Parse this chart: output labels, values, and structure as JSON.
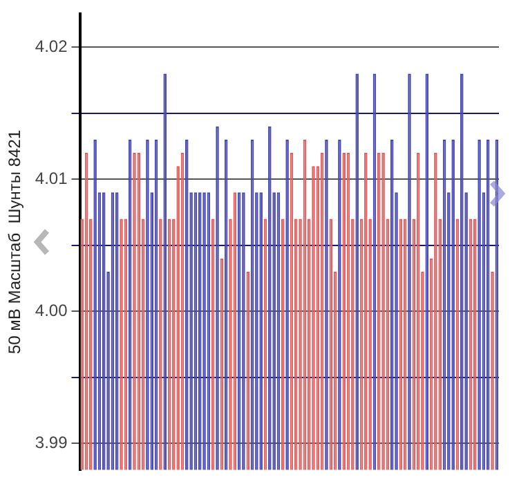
{
  "chart_data": {
    "type": "bar",
    "ylabel": "50 мВ Масштаб  Шунты 8421",
    "categories": [
      null,
      null,
      null,
      null,
      null,
      null,
      null,
      null,
      null,
      null,
      null,
      null,
      null,
      null,
      null,
      null,
      null,
      null,
      null,
      null,
      null,
      null,
      null,
      null,
      null,
      null,
      null,
      null,
      null,
      null,
      null,
      null,
      null,
      null,
      null,
      null,
      null,
      null,
      null,
      null,
      null,
      null,
      null,
      null,
      null,
      null,
      null,
      null,
      null,
      null,
      null,
      null,
      null,
      null,
      null,
      null,
      null,
      null,
      null,
      null,
      null,
      null,
      null,
      null,
      null,
      null,
      null,
      null,
      null,
      null,
      null,
      null,
      null,
      null,
      null,
      null,
      null,
      null,
      null,
      null,
      null,
      null,
      null,
      null,
      null,
      null,
      null,
      null,
      null,
      null,
      null,
      null,
      null,
      null,
      null,
      null
    ],
    "values": [
      4.007,
      4.012,
      4.007,
      4.013,
      4.009,
      4.009,
      4.003,
      4.009,
      4.009,
      4.007,
      4.007,
      4.013,
      4.012,
      4.012,
      4.007,
      4.013,
      4.009,
      4.013,
      4.007,
      4.018,
      4.007,
      4.007,
      4.011,
      4.012,
      4.013,
      4.009,
      4.009,
      4.009,
      4.009,
      4.009,
      4.007,
      4.014,
      4.004,
      4.013,
      4.007,
      4.009,
      4.009,
      4.009,
      4.003,
      4.013,
      4.009,
      4.009,
      4.007,
      4.014,
      4.009,
      4.009,
      4.007,
      4.013,
      4.012,
      4.007,
      4.007,
      4.013,
      4.007,
      4.011,
      4.011,
      4.012,
      4.013,
      4.007,
      4.003,
      4.013,
      4.012,
      4.012,
      4.007,
      4.018,
      4.007,
      4.012,
      4.007,
      4.018,
      4.012,
      4.012,
      4.007,
      4.013,
      4.009,
      4.007,
      4.007,
      4.018,
      4.007,
      4.012,
      4.003,
      4.018,
      4.004,
      4.012,
      4.007,
      4.013,
      4.009,
      4.013,
      4.007,
      4.018,
      4.009,
      4.007,
      4.007,
      4.013,
      4.009,
      4.013,
      4.003,
      4.013
    ],
    "colors": [
      "#e06062",
      "#e06062",
      "#e06062",
      "#4848b4",
      "#4848b4",
      "#4848b4",
      "#4848b4",
      "#4848b4",
      "#4848b4",
      "#e06062",
      "#e06062",
      "#4848b4",
      "#e06062",
      "#e06062",
      "#e06062",
      "#4848b4",
      "#4848b4",
      "#4848b4",
      "#e06062",
      "#4848b4",
      "#e06062",
      "#e06062",
      "#e06062",
      "#e06062",
      "#4848b4",
      "#4848b4",
      "#4848b4",
      "#4848b4",
      "#4848b4",
      "#4848b4",
      "#e06062",
      "#4848b4",
      "#e06062",
      "#4848b4",
      "#e06062",
      "#e06062",
      "#4848b4",
      "#4848b4",
      "#e06062",
      "#4848b4",
      "#4848b4",
      "#4848b4",
      "#e06062",
      "#4848b4",
      "#4848b4",
      "#4848b4",
      "#e06062",
      "#4848b4",
      "#e06062",
      "#e06062",
      "#e06062",
      "#e06062",
      "#e06062",
      "#e06062",
      "#e06062",
      "#e06062",
      "#4848b4",
      "#e06062",
      "#e06062",
      "#4848b4",
      "#e06062",
      "#e06062",
      "#e06062",
      "#4848b4",
      "#e06062",
      "#e06062",
      "#e06062",
      "#4848b4",
      "#e06062",
      "#e06062",
      "#e06062",
      "#4848b4",
      "#4848b4",
      "#e06062",
      "#e06062",
      "#4848b4",
      "#e06062",
      "#e06062",
      "#e06062",
      "#4848b4",
      "#e06062",
      "#e06062",
      "#e06062",
      "#4848b4",
      "#4848b4",
      "#4848b4",
      "#e06062",
      "#4848b4",
      "#4848b4",
      "#e06062",
      "#e06062",
      "#4848b4",
      "#4848b4",
      "#4848b4",
      "#e06062",
      "#4848b4"
    ],
    "ylim": [
      3.988,
      4.0225
    ],
    "yticks": [
      {
        "value": 3.99,
        "label": "3.99"
      },
      {
        "value": 3.995,
        "label": null
      },
      {
        "value": 4.0,
        "label": "4.00"
      },
      {
        "value": 4.005,
        "label": null
      },
      {
        "value": 4.01,
        "label": "4.01"
      },
      {
        "value": 4.015,
        "label": null
      },
      {
        "value": 4.02,
        "label": "4.02"
      }
    ],
    "grid": "y",
    "legend": false
  }
}
